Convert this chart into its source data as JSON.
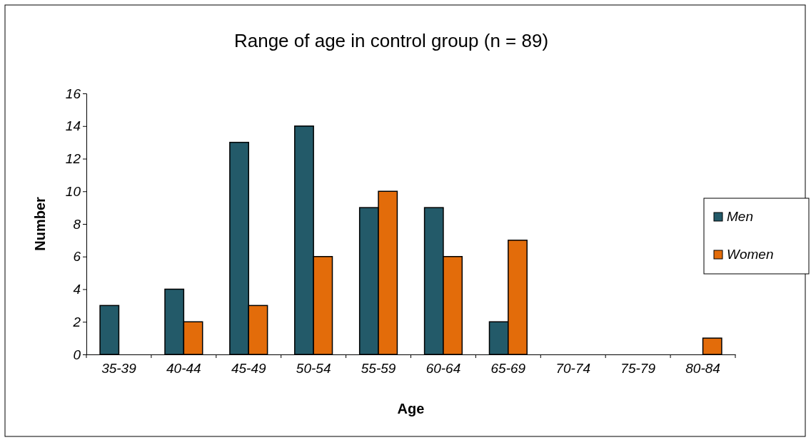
{
  "chart_data": {
    "type": "bar",
    "title": "Range of age in control group (n = 89)",
    "xlabel": "Age",
    "ylabel": "Number",
    "categories": [
      "35-39",
      "40-44",
      "45-49",
      "50-54",
      "55-59",
      "60-64",
      "65-69",
      "70-74",
      "75-79",
      "80-84"
    ],
    "series": [
      {
        "name": "Men",
        "color": "#235a69",
        "values": [
          3,
          4,
          13,
          14,
          9,
          9,
          2,
          0,
          0,
          0
        ]
      },
      {
        "name": "Women",
        "color": "#e36c0a",
        "values": [
          0,
          2,
          3,
          6,
          10,
          6,
          7,
          0,
          0,
          1
        ]
      }
    ],
    "ylim": [
      0,
      16
    ],
    "yticks": [
      0,
      2,
      4,
      6,
      8,
      10,
      12,
      14,
      16
    ],
    "legend": "right",
    "grid": false
  }
}
